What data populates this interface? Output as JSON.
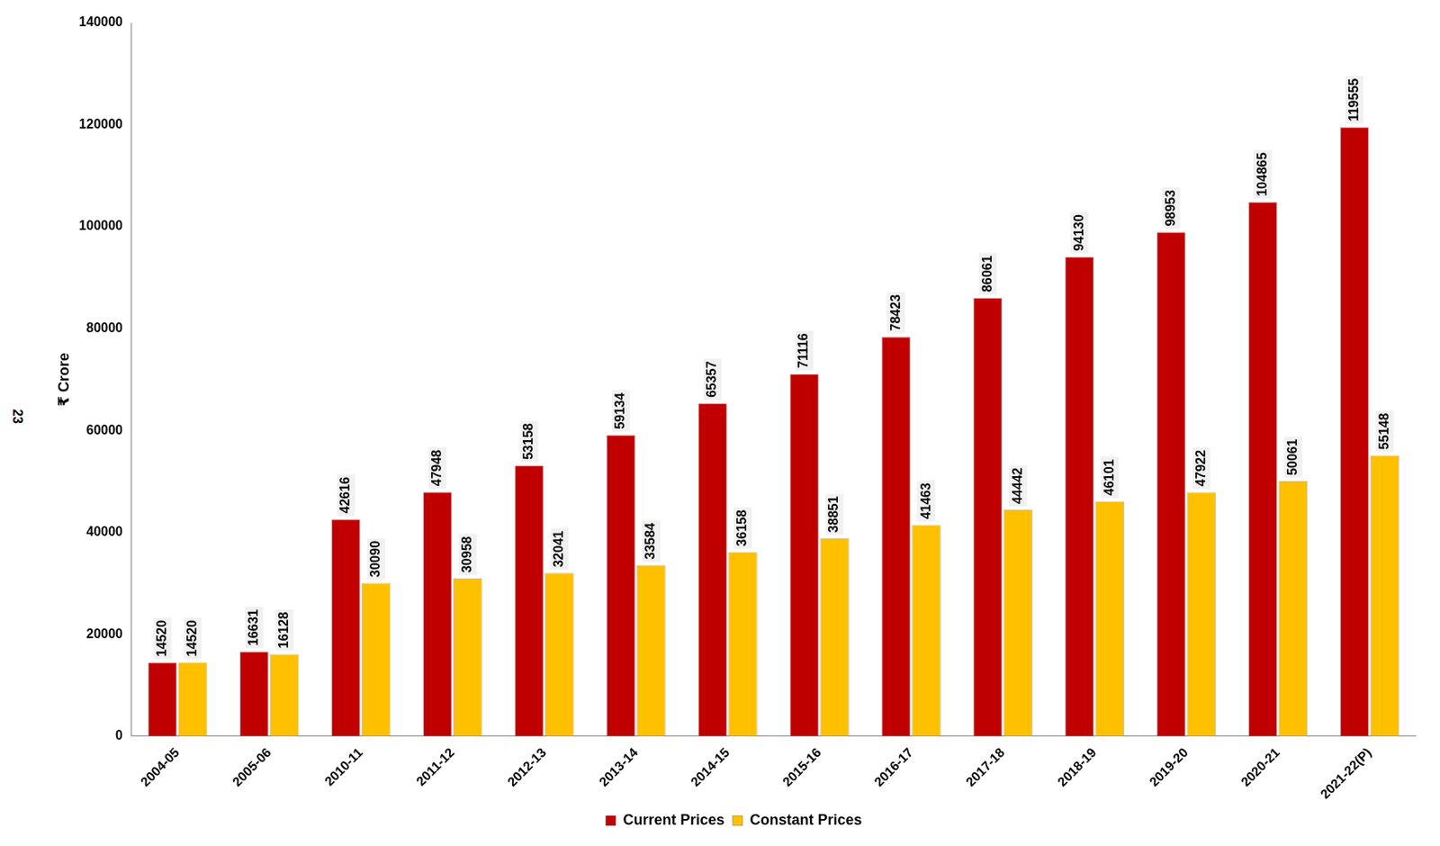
{
  "chart_data": {
    "type": "bar",
    "y_label": "₹ Crore",
    "annotations": [
      "23"
    ],
    "categories": [
      "2004-05",
      "2005-06",
      "2010-11",
      "2011-12",
      "2012-13",
      "2013-14",
      "2014-15",
      "2015-16",
      "2016-17",
      "2017-18",
      "2018-19",
      "2019-20",
      "2020-21",
      "2021-22(P)"
    ],
    "series": [
      {
        "name": "Current Prices",
        "color": "#c00000",
        "values": [
          14520,
          16631,
          42616,
          47948,
          53158,
          59134,
          65357,
          71116,
          78423,
          86061,
          94130,
          98953,
          104865,
          119555
        ]
      },
      {
        "name": "Constant Prices",
        "color": "#ffc000",
        "values": [
          14520,
          16128,
          30090,
          30958,
          32041,
          33584,
          36158,
          38851,
          41463,
          44442,
          46101,
          47922,
          50061,
          55148
        ]
      }
    ],
    "ylim": [
      0,
      140000
    ],
    "yticks": [
      0,
      20000,
      40000,
      60000,
      80000,
      100000,
      120000,
      140000
    ],
    "grid": false,
    "legend": "bottom",
    "data_labels": true
  }
}
